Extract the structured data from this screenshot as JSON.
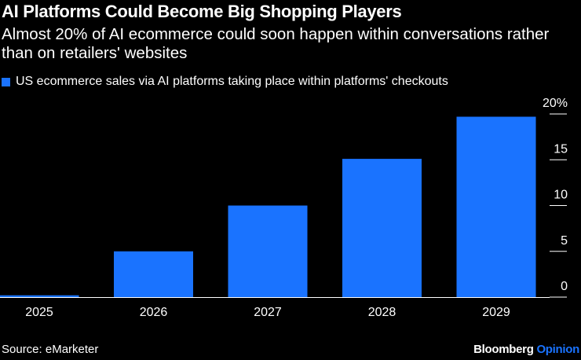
{
  "header": {
    "title": "AI Platforms Could Become Big Shopping Players",
    "subtitle": "Almost 20% of AI ecommerce could soon happen within conversations rather than on retailers' websites"
  },
  "footer": {
    "source": "Source: eMarketer",
    "brand_main": "Bloomberg",
    "brand_accent": "Opinion"
  },
  "colors": {
    "bar": "#1a73ff",
    "background": "#000000",
    "text": "#ffffff"
  },
  "chart_data": {
    "type": "bar",
    "categories": [
      "2025",
      "2026",
      "2027",
      "2028",
      "2029"
    ],
    "series": [
      {
        "name": "US ecommerce sales via AI platforms taking place within platforms' checkouts",
        "values": [
          0.2,
          5.0,
          10.0,
          15.1,
          19.7
        ]
      }
    ],
    "ylim": [
      0,
      20
    ],
    "yticks": [
      0,
      5,
      10,
      15,
      20
    ],
    "ytick_labels": [
      "0",
      "5",
      "10",
      "15",
      "20%"
    ],
    "y_axis_side": "right",
    "legend_position": "top-left",
    "grid": false
  }
}
